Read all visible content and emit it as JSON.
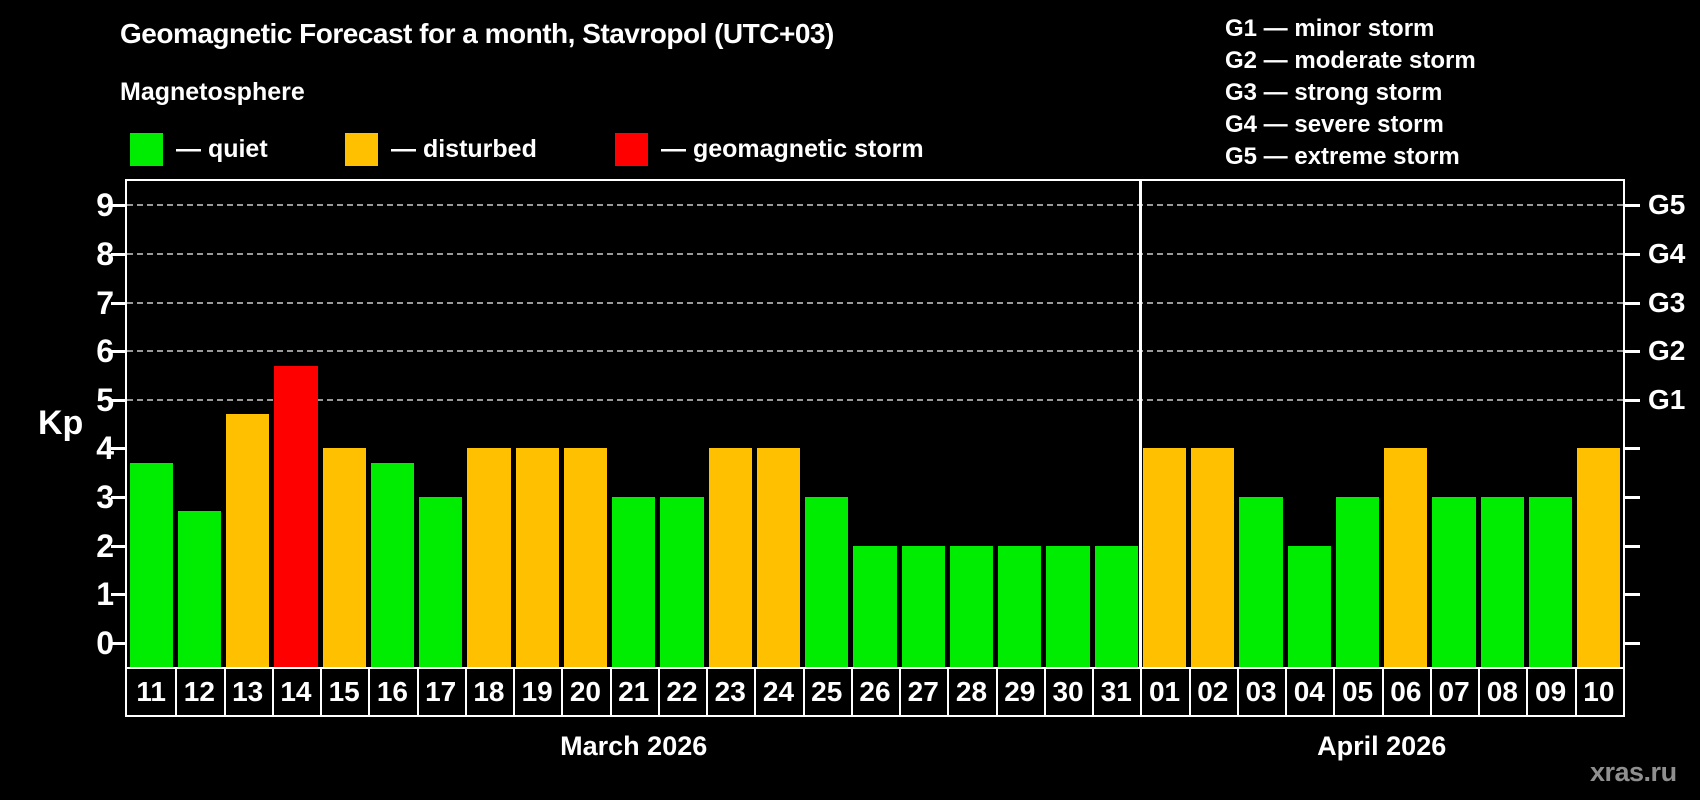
{
  "header": {
    "title": "Geomagnetic Forecast for a month, Stavropol (UTC+03)",
    "subtitle": "Magnetosphere"
  },
  "legend": {
    "items": [
      {
        "key": "quiet",
        "label": "— quiet",
        "color": "#00ec00"
      },
      {
        "key": "disturbed",
        "label": "— disturbed",
        "color": "#ffc000"
      },
      {
        "key": "storm",
        "label": "— geomagnetic storm",
        "color": "#ff0000"
      }
    ]
  },
  "g_legend": {
    "items": [
      "G1 — minor storm",
      "G2 — moderate storm",
      "G3 — strong storm",
      "G4 — severe storm",
      "G5 — extreme storm"
    ]
  },
  "axis": {
    "ylabel": "Kp"
  },
  "watermark": "xras.ru",
  "chart_data": {
    "type": "bar",
    "title": "Geomagnetic Forecast for a month, Stavropol (UTC+03)",
    "ylabel": "Kp",
    "ylim": [
      -0.5,
      9.5
    ],
    "yticks": [
      0,
      1,
      2,
      3,
      4,
      5,
      6,
      7,
      8,
      9
    ],
    "gridlines_at": [
      5,
      6,
      7,
      8,
      9
    ],
    "grid": "dashed-horizontal",
    "legend_position": "top-left",
    "status_colors": {
      "quiet": "#00ec00",
      "disturbed": "#ffc000",
      "storm": "#ff0000"
    },
    "right_axis": {
      "labels": [
        {
          "value": 5,
          "label": "G1"
        },
        {
          "value": 6,
          "label": "G2"
        },
        {
          "value": 7,
          "label": "G3"
        },
        {
          "value": 8,
          "label": "G4"
        },
        {
          "value": 9,
          "label": "G5"
        }
      ]
    },
    "months": [
      {
        "label": "March 2026",
        "days": [
          {
            "day": "11",
            "kp": 3.7,
            "status": "quiet"
          },
          {
            "day": "12",
            "kp": 2.7,
            "status": "quiet"
          },
          {
            "day": "13",
            "kp": 4.7,
            "status": "disturbed"
          },
          {
            "day": "14",
            "kp": 5.7,
            "status": "storm"
          },
          {
            "day": "15",
            "kp": 4.0,
            "status": "disturbed"
          },
          {
            "day": "16",
            "kp": 3.7,
            "status": "quiet"
          },
          {
            "day": "17",
            "kp": 3.0,
            "status": "quiet"
          },
          {
            "day": "18",
            "kp": 4.0,
            "status": "disturbed"
          },
          {
            "day": "19",
            "kp": 4.0,
            "status": "disturbed"
          },
          {
            "day": "20",
            "kp": 4.0,
            "status": "disturbed"
          },
          {
            "day": "21",
            "kp": 3.0,
            "status": "quiet"
          },
          {
            "day": "22",
            "kp": 3.0,
            "status": "quiet"
          },
          {
            "day": "23",
            "kp": 4.0,
            "status": "disturbed"
          },
          {
            "day": "24",
            "kp": 4.0,
            "status": "disturbed"
          },
          {
            "day": "25",
            "kp": 3.0,
            "status": "quiet"
          },
          {
            "day": "26",
            "kp": 2.0,
            "status": "quiet"
          },
          {
            "day": "27",
            "kp": 2.0,
            "status": "quiet"
          },
          {
            "day": "28",
            "kp": 2.0,
            "status": "quiet"
          },
          {
            "day": "29",
            "kp": 2.0,
            "status": "quiet"
          },
          {
            "day": "30",
            "kp": 2.0,
            "status": "quiet"
          },
          {
            "day": "31",
            "kp": 2.0,
            "status": "quiet"
          }
        ]
      },
      {
        "label": "April 2026",
        "days": [
          {
            "day": "01",
            "kp": 4.0,
            "status": "disturbed"
          },
          {
            "day": "02",
            "kp": 4.0,
            "status": "disturbed"
          },
          {
            "day": "03",
            "kp": 3.0,
            "status": "quiet"
          },
          {
            "day": "04",
            "kp": 2.0,
            "status": "quiet"
          },
          {
            "day": "05",
            "kp": 3.0,
            "status": "quiet"
          },
          {
            "day": "06",
            "kp": 4.0,
            "status": "disturbed"
          },
          {
            "day": "07",
            "kp": 3.0,
            "status": "quiet"
          },
          {
            "day": "08",
            "kp": 3.0,
            "status": "quiet"
          },
          {
            "day": "09",
            "kp": 3.0,
            "status": "quiet"
          },
          {
            "day": "10",
            "kp": 4.0,
            "status": "disturbed"
          }
        ]
      }
    ]
  }
}
